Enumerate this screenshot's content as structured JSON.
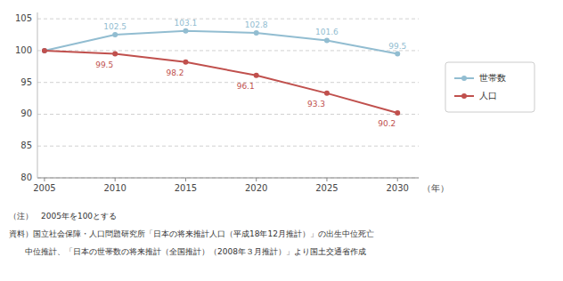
{
  "chart_data": {
    "type": "line",
    "x": [
      2005,
      2010,
      2015,
      2020,
      2025,
      2030
    ],
    "series": [
      {
        "name": "世帯数",
        "color": "#92bdd1",
        "marker": "circle",
        "values": [
          100.0,
          102.5,
          103.1,
          102.8,
          101.6,
          99.5
        ],
        "value_labels": [
          null,
          "102.5",
          "103.1",
          "102.8",
          "101.6",
          "99.5"
        ]
      },
      {
        "name": "人口",
        "color": "#c0504d",
        "marker": "circle",
        "values": [
          100.0,
          99.5,
          98.2,
          96.1,
          93.3,
          90.2
        ],
        "value_labels": [
          null,
          "99.5",
          "98.2",
          "96.1",
          "93.3",
          "90.2"
        ]
      }
    ],
    "data_labels": true,
    "x_label": "（年）",
    "xlim": [
      2004.5,
      2031.5
    ],
    "xticks": [
      2005,
      2010,
      2015,
      2020,
      2025,
      2030
    ],
    "ylim": [
      80,
      106
    ],
    "yticks": [
      80,
      85,
      90,
      95,
      100,
      105
    ],
    "grid": true,
    "legend": "right",
    "notes": [
      "（注）　2005年を100とする",
      "資料）国立社会保障・人口問題研究所「日本の将来推計人口（平成18年12月推計）」の出生中位死亡",
      "　　中位推計、「日本の世帯数の将来推計（全国推計）（2008年３月推計）」より国土交通省作成"
    ]
  }
}
